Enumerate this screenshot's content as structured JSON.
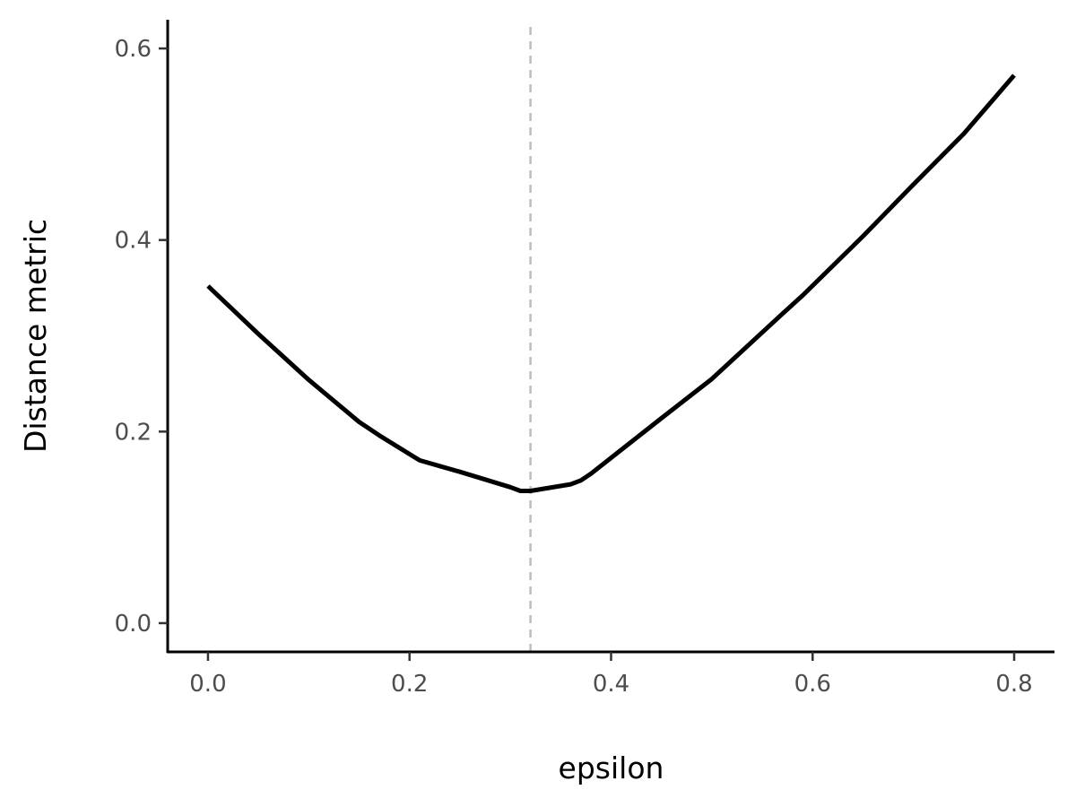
{
  "chart_data": {
    "type": "line",
    "title": "",
    "xlabel": "epsilon",
    "ylabel": "Distance metric",
    "xlim": [
      -0.04,
      0.84
    ],
    "ylim": [
      -0.03,
      0.63
    ],
    "x_ticks": [
      0.0,
      0.2,
      0.4,
      0.6,
      0.8
    ],
    "x_tick_labels": [
      "0.0",
      "0.2",
      "0.4",
      "0.6",
      "0.8"
    ],
    "y_ticks": [
      0.0,
      0.2,
      0.4,
      0.6
    ],
    "y_tick_labels": [
      "0.0",
      "0.2",
      "0.4",
      "0.6"
    ],
    "grid": false,
    "legend": "none",
    "series": [
      {
        "color": "#000000",
        "x": [
          0.0,
          0.05,
          0.1,
          0.15,
          0.17,
          0.21,
          0.25,
          0.3,
          0.31,
          0.32,
          0.36,
          0.37,
          0.38,
          0.45,
          0.5,
          0.57,
          0.59,
          0.65,
          0.7,
          0.75,
          0.8
        ],
        "y": [
          0.352,
          0.302,
          0.254,
          0.21,
          0.196,
          0.17,
          0.158,
          0.142,
          0.138,
          0.138,
          0.145,
          0.149,
          0.156,
          0.214,
          0.255,
          0.323,
          0.342,
          0.404,
          0.458,
          0.511,
          0.572
        ]
      }
    ],
    "vline": {
      "x": 0.32,
      "color": "#bebebe",
      "style": "dashed"
    }
  }
}
